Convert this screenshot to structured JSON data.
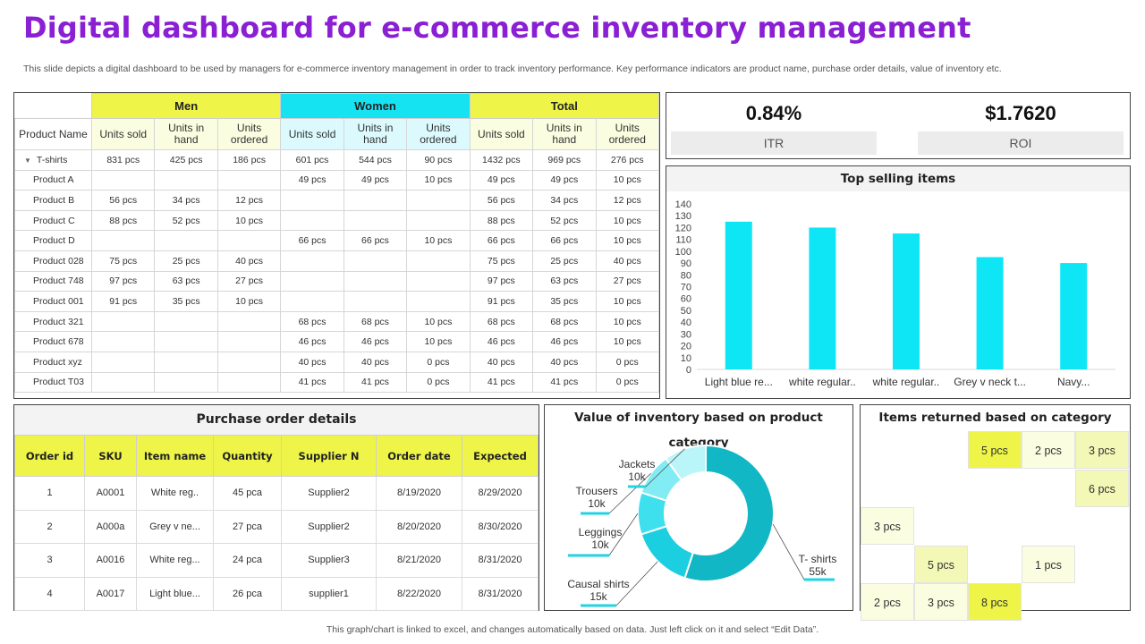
{
  "title": "Digital dashboard for e-commerce inventory management",
  "subtitle": "This slide depicts a digital dashboard to be used by managers for e-commerce inventory management in order to track inventory performance. Key performance indicators are product name, purchase order details, value of inventory etc.",
  "footer": "This graph/chart is linked to excel, and changes automatically based on data. Just left click on it and select “Edit Data”.",
  "inventory": {
    "groups": [
      "Men",
      "Women",
      "Total"
    ],
    "product_name_header": "Product Name",
    "sub_headers": [
      "Units sold",
      "Units in hand",
      "Units ordered",
      "Units sold",
      "Units in hand",
      "Units ordered",
      "Units sold",
      "Units in hand",
      "Units ordered"
    ],
    "rows": [
      {
        "name": "T-shirts",
        "cells": [
          "831 pcs",
          "425 pcs",
          "186 pcs",
          "601 pcs",
          "544 pcs",
          "90 pcs",
          "1432 pcs",
          "969 pcs",
          "276 pcs"
        ]
      },
      {
        "name": "Product A",
        "cells": [
          "",
          "",
          "",
          "49 pcs",
          "49 pcs",
          "10 pcs",
          "49 pcs",
          "49 pcs",
          "10 pcs"
        ]
      },
      {
        "name": "Product B",
        "cells": [
          "56 pcs",
          "34 pcs",
          "12 pcs",
          "",
          "",
          "",
          "56 pcs",
          "34 pcs",
          "12 pcs"
        ]
      },
      {
        "name": "Product C",
        "cells": [
          "88 pcs",
          "52 pcs",
          "10 pcs",
          "",
          "",
          "",
          "88 pcs",
          "52 pcs",
          "10 pcs"
        ]
      },
      {
        "name": "Product D",
        "cells": [
          "",
          "",
          "",
          "66 pcs",
          "66 pcs",
          "10 pcs",
          "66 pcs",
          "66 pcs",
          "10 pcs"
        ]
      },
      {
        "name": "Product 028",
        "cells": [
          "75 pcs",
          "25 pcs",
          "40 pcs",
          "",
          "",
          "",
          "75 pcs",
          "25 pcs",
          "40 pcs"
        ]
      },
      {
        "name": "Product 748",
        "cells": [
          "97 pcs",
          "63 pcs",
          "27 pcs",
          "",
          "",
          "",
          "97 pcs",
          "63 pcs",
          "27 pcs"
        ]
      },
      {
        "name": "Product 001",
        "cells": [
          "91 pcs",
          "35 pcs",
          "10 pcs",
          "",
          "",
          "",
          "91 pcs",
          "35 pcs",
          "10 pcs"
        ]
      },
      {
        "name": "Product 321",
        "cells": [
          "",
          "",
          "",
          "68 pcs",
          "68 pcs",
          "10 pcs",
          "68 pcs",
          "68 pcs",
          "10 pcs"
        ]
      },
      {
        "name": "Product 678",
        "cells": [
          "",
          "",
          "",
          "46 pcs",
          "46 pcs",
          "10 pcs",
          "46 pcs",
          "46 pcs",
          "10 pcs"
        ]
      },
      {
        "name": "Product xyz",
        "cells": [
          "",
          "",
          "",
          "40 pcs",
          "40 pcs",
          "0 pcs",
          "40 pcs",
          "40 pcs",
          "0 pcs"
        ]
      },
      {
        "name": "Product T03",
        "cells": [
          "",
          "",
          "",
          "41 pcs",
          "41 pcs",
          "0 pcs",
          "41 pcs",
          "41 pcs",
          "0 pcs"
        ]
      }
    ]
  },
  "kpis": [
    {
      "value": "0.84%",
      "label": "ITR"
    },
    {
      "value": "$1.7620",
      "label": "ROI"
    }
  ],
  "chart_data": [
    {
      "type": "bar",
      "title": "Top selling items",
      "categories": [
        "Light blue re...",
        "white regular..",
        "white regular..",
        "Grey v neck t...",
        "Navy..."
      ],
      "values": [
        125,
        120,
        115,
        95,
        90
      ],
      "ylim": [
        0,
        140
      ],
      "yticks": [
        0,
        10,
        20,
        30,
        40,
        50,
        60,
        70,
        80,
        90,
        100,
        110,
        120,
        130,
        140
      ],
      "color": "#0ee6f5"
    },
    {
      "type": "pie",
      "title": "Value of inventory based on product category",
      "labels": [
        "T- shirts",
        "Causal shirts",
        "Leggings",
        "Trousers",
        "Jackets"
      ],
      "values": [
        55,
        15,
        10,
        10,
        10
      ],
      "value_labels": [
        "55k",
        "15k",
        "10k",
        "10k",
        "10k"
      ],
      "colors": [
        "#12b7c6",
        "#1ccfe0",
        "#3fe0ee",
        "#82ecf4",
        "#b9f5f9"
      ]
    }
  ],
  "purchase_orders": {
    "title": "Purchase order details",
    "headers": [
      "Order id",
      "SKU",
      "Item name",
      "Quantity",
      "Supplier N",
      "Order date",
      "Expected"
    ],
    "rows": [
      [
        "1",
        "A0001",
        "White reg..",
        "45 pca",
        "Supplier2",
        "8/19/2020",
        "8/29/2020"
      ],
      [
        "2",
        "A000a",
        "Grey v ne...",
        "27 pca",
        "Supplier2",
        "8/20/2020",
        "8/30/2020"
      ],
      [
        "3",
        "A0016",
        "White reg...",
        "24 pca",
        "Supplier3",
        "8/21/2020",
        "8/31/2020"
      ],
      [
        "4",
        "A0017",
        "Light blue...",
        "26 pca",
        "supplier1",
        "8/22/2020",
        "8/31/2020"
      ]
    ]
  },
  "returns": {
    "title": "Items returned based on category",
    "cells": [
      {
        "row": 0,
        "col": 2,
        "text": "5 pcs",
        "tone": "y"
      },
      {
        "row": 0,
        "col": 3,
        "text": "2 pcs",
        "tone": "p"
      },
      {
        "row": 0,
        "col": 4,
        "text": "3 pcs",
        "tone": "l"
      },
      {
        "row": 1,
        "col": 4,
        "text": "6 pcs",
        "tone": "l"
      },
      {
        "row": 2,
        "col": 0,
        "text": "3 pcs",
        "tone": "p"
      },
      {
        "row": 3,
        "col": 1,
        "text": "5 pcs",
        "tone": "l"
      },
      {
        "row": 3,
        "col": 3,
        "text": "1 pcs",
        "tone": "p"
      },
      {
        "row": 4,
        "col": 0,
        "text": "2 pcs",
        "tone": "p"
      },
      {
        "row": 4,
        "col": 1,
        "text": "3 pcs",
        "tone": "p"
      },
      {
        "row": 4,
        "col": 2,
        "text": "8 pcs",
        "tone": "y"
      }
    ]
  }
}
